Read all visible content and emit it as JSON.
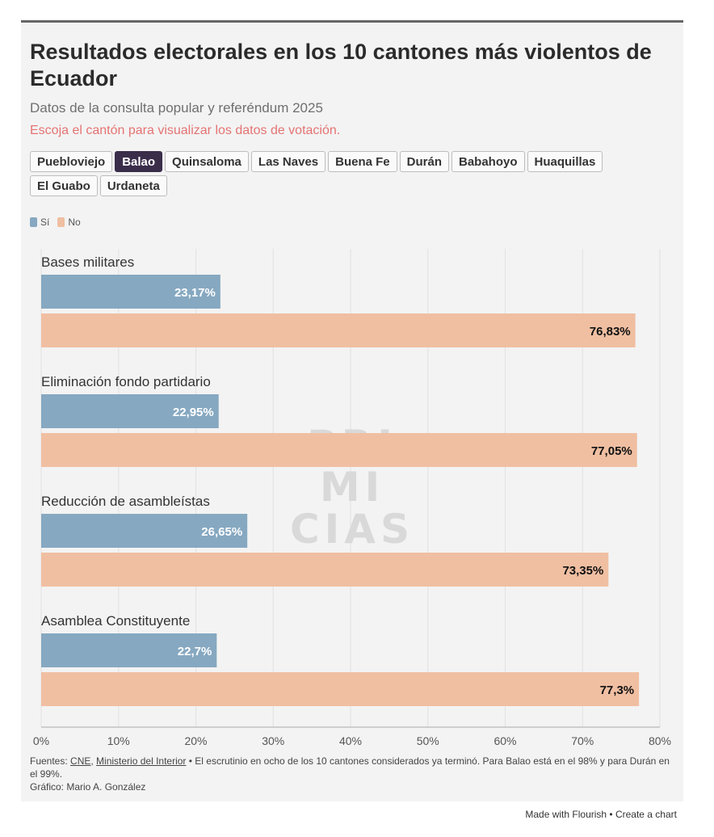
{
  "header": {
    "title": "Resultados electorales en los 10 cantones más violentos de Ecuador",
    "subtitle": "Datos de la consulta popular y referéndum 2025",
    "instruction": "Escoja el cantón para visualizar los datos de votación."
  },
  "cantons": {
    "selected": "Balao",
    "items": [
      "Puebloviejo",
      "Balao",
      "Quinsaloma",
      "Las Naves",
      "Buena Fe",
      "Durán",
      "Babahoyo",
      "Huaquillas",
      "El Guabo",
      "Urdaneta"
    ]
  },
  "watermark": {
    "lines": [
      "PRI",
      "MI",
      "CIAS"
    ]
  },
  "chart_data": {
    "type": "bar",
    "orientation": "horizontal",
    "categories": [
      "Bases militares",
      "Eliminación fondo partidario",
      "Reducción de asambleístas",
      "Asamblea Constituyente"
    ],
    "series": [
      {
        "name": "Sí",
        "color": "#86a8c1",
        "values": [
          23.17,
          22.95,
          26.65,
          22.7
        ],
        "labels": [
          "23,17%",
          "22,95%",
          "26,65%",
          "22,7%"
        ]
      },
      {
        "name": "No",
        "color": "#f0bfa2",
        "values": [
          76.83,
          77.05,
          73.35,
          77.3
        ],
        "labels": [
          "76,83%",
          "77,05%",
          "73,35%",
          "77,3%"
        ]
      }
    ],
    "xlim": [
      0,
      80
    ],
    "xticks": [
      0,
      10,
      20,
      30,
      40,
      50,
      60,
      70,
      80
    ],
    "xtick_labels": [
      "0%",
      "10%",
      "20%",
      "30%",
      "40%",
      "50%",
      "60%",
      "70%",
      "80%"
    ],
    "grid": true,
    "legend_position": "top-left"
  },
  "footer": {
    "sources_prefix": "Fuentes: ",
    "source_1": "CNE",
    "separator": ", ",
    "source_2": "Ministerio del Interior",
    "note": " • El escrutinio en ocho de los 10 cantones considerados ya terminó. Para Balao está en el 98% y para Durán en el 99%.",
    "credit": "Gráfico: Mario A. González"
  },
  "branding": {
    "made_with": "Made with Flourish • Create a chart"
  }
}
